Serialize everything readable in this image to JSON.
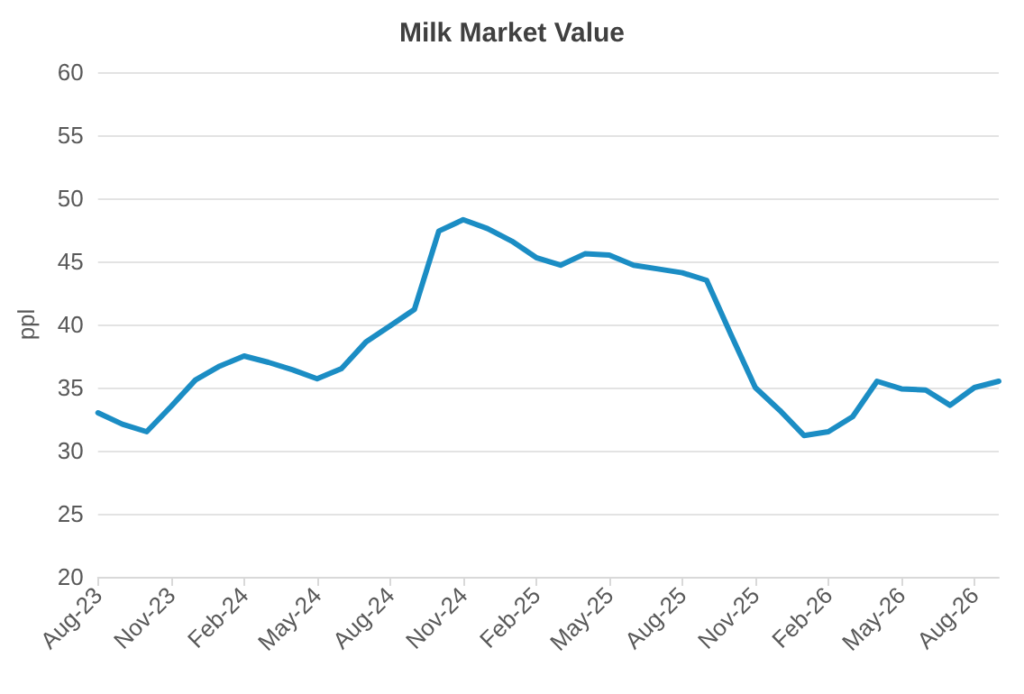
{
  "chart_data": {
    "type": "line",
    "title": "Milk Market Value",
    "ylabel": "ppl",
    "categories": [
      "Aug-23",
      null,
      null,
      "Nov-23",
      null,
      null,
      "Feb-24",
      null,
      null,
      "May-24",
      null,
      null,
      "Aug-24",
      null,
      null,
      "Nov-24",
      null,
      null,
      "Feb-25",
      null,
      null,
      "May-25",
      null,
      null,
      "Aug-25",
      null,
      null,
      "Nov-25",
      null,
      null,
      "Feb-26",
      null,
      null,
      "May-26",
      null,
      null,
      "Aug-26",
      null
    ],
    "series": [
      {
        "color": "#1b8dc4",
        "values": [
          33.0,
          32.1,
          31.5,
          33.5,
          35.6,
          36.7,
          37.5,
          37.0,
          36.4,
          35.7,
          36.5,
          38.6,
          39.9,
          41.2,
          47.4,
          48.3,
          47.6,
          46.6,
          45.3,
          44.7,
          45.6,
          45.5,
          44.7,
          44.4,
          44.1,
          43.5,
          39.2,
          35.0,
          33.2,
          31.2,
          31.5,
          32.7,
          35.5,
          34.9,
          34.8,
          33.6,
          35.0,
          35.5
        ]
      }
    ],
    "ylim": [
      20,
      60
    ],
    "yticks": [
      20,
      25,
      30,
      35,
      40,
      45,
      50,
      55,
      60
    ],
    "grid": "y",
    "marker": "none",
    "line_style": "solid"
  }
}
